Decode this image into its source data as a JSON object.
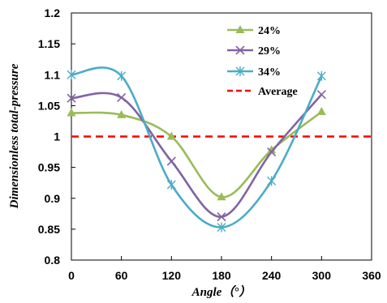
{
  "chart_data": {
    "type": "line",
    "xlabel": "Angle（°）",
    "ylabel": "Dimensionless total-pressure",
    "xlim": [
      0,
      360
    ],
    "ylim": [
      0.8,
      1.2
    ],
    "xticks": [
      0,
      60,
      120,
      180,
      240,
      300,
      360
    ],
    "yticks": [
      0.8,
      0.85,
      0.9,
      0.95,
      1,
      1.05,
      1.1,
      1.15,
      1.2
    ],
    "ytick_labels": [
      "0.8",
      "0.85",
      "0.9",
      "0.95",
      "1",
      "1.05",
      "1.1",
      "1.15",
      "1.2"
    ],
    "x": [
      0,
      60,
      120,
      180,
      240,
      300
    ],
    "grid": false,
    "legend_position": "top-right",
    "series": [
      {
        "name": "24%",
        "color": "#9bbb59",
        "marker": "triangle",
        "values": [
          1.038,
          1.035,
          1.0,
          0.902,
          0.978,
          1.04
        ]
      },
      {
        "name": "29%",
        "color": "#8064a2",
        "marker": "x",
        "values": [
          1.062,
          1.063,
          0.96,
          0.87,
          0.975,
          1.068
        ]
      },
      {
        "name": "34%",
        "color": "#4bacc6",
        "marker": "asterisk",
        "values": [
          1.1,
          1.098,
          0.922,
          0.853,
          0.928,
          1.098
        ]
      }
    ],
    "reference_line": {
      "name": "Average",
      "value": 1.0,
      "color": "#ff0000",
      "style": "dashed"
    }
  }
}
